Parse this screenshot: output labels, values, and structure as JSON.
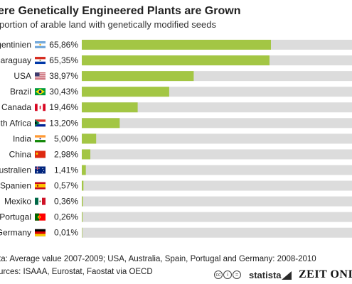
{
  "title": "ere Genetically Engineered Plants are Grown",
  "subtitle": "portion of arable land with genetically modified seeds",
  "footnote_1": "ta: Average value 2007-2009; USA, Australia, Spain, Portugal and Germany: 2008-2010",
  "footnote_2": "urces: ISAAA, Eurostat, Faostat via OECD",
  "brand": "statista",
  "brand_partner": "ZEIT ONI",
  "colors": {
    "bar": "#a3c644",
    "track": "#dcdcdc"
  },
  "chart_data": {
    "type": "bar",
    "orientation": "horizontal",
    "title": "ere Genetically Engineered Plants are Grown",
    "subtitle": "portion of arable land with genetically modified seeds",
    "xlim": [
      0,
      100
    ],
    "categories": [
      "rgentinien",
      "Paraguay",
      "USA",
      "Brazil",
      "Canada",
      "th Africa",
      "India",
      "China",
      "ustralien",
      "Spanien",
      "Mexiko",
      "Portugal",
      "Germany"
    ],
    "flags": [
      "argentina-flag-icon",
      "paraguay-flag-icon",
      "usa-flag-icon",
      "brazil-flag-icon",
      "canada-flag-icon",
      "south-africa-flag-icon",
      "india-flag-icon",
      "china-flag-icon",
      "australia-flag-icon",
      "spain-flag-icon",
      "mexico-flag-icon",
      "portugal-flag-icon",
      "germany-flag-icon"
    ],
    "values": [
      65.86,
      65.35,
      38.97,
      30.43,
      19.46,
      13.2,
      5.0,
      2.98,
      1.41,
      0.57,
      0.36,
      0.26,
      0.01
    ],
    "value_labels": [
      "65,86%",
      "65,35%",
      "38,97%",
      "30,43%",
      "19,46%",
      "13,20%",
      "5,00%",
      "2,98%",
      "1,41%",
      "0,57%",
      "0,36%",
      "0,26%",
      "0,01%"
    ]
  }
}
